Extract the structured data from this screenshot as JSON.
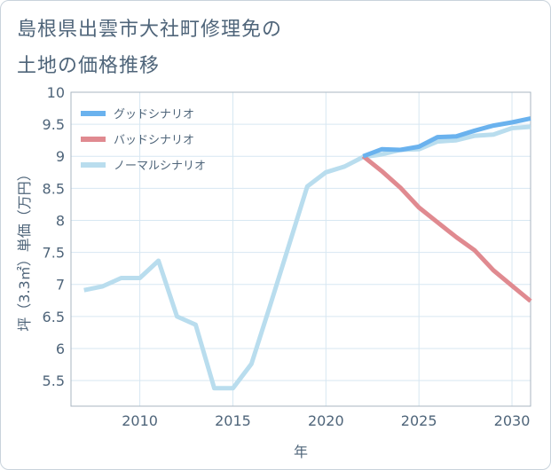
{
  "title_lines": [
    "島根県出雲市大社町修理免の",
    "土地の価格推移"
  ],
  "chart_data": {
    "type": "line",
    "title": "島根県出雲市大社町修理免の土地の価格推移",
    "xlabel": "年",
    "ylabel": "坪（3.3㎡）単価（万円）",
    "xlim": [
      2006.3,
      2031
    ],
    "ylim": [
      5.1,
      10
    ],
    "x_ticks": [
      2010,
      2015,
      2020,
      2025,
      2030
    ],
    "y_ticks": [
      5.5,
      6,
      6.5,
      7,
      7.5,
      8,
      8.5,
      9,
      9.5,
      10
    ],
    "grid": true,
    "legend_position": "top-left",
    "series": [
      {
        "name": "グッドシナリオ",
        "color": "#6ab2ee",
        "x": [
          2022,
          2023,
          2024,
          2025,
          2026,
          2027,
          2028,
          2029,
          2030,
          2031
        ],
        "values": [
          9.0,
          9.11,
          9.1,
          9.15,
          9.3,
          9.31,
          9.4,
          9.48,
          9.53,
          9.59
        ]
      },
      {
        "name": "バッドシナリオ",
        "color": "#e08a90",
        "x": [
          2022,
          2023,
          2024,
          2025,
          2026,
          2027,
          2028,
          2029,
          2030,
          2031
        ],
        "values": [
          9.0,
          8.77,
          8.51,
          8.2,
          7.97,
          7.74,
          7.53,
          7.22,
          6.98,
          6.74
        ]
      },
      {
        "name": "ノーマルシナリオ",
        "color": "#b9ddee",
        "x": [
          2007,
          2008,
          2009,
          2010,
          2011,
          2012,
          2013,
          2014,
          2015,
          2016,
          2017,
          2018,
          2019,
          2020,
          2021,
          2022,
          2023,
          2024,
          2025,
          2026,
          2027,
          2028,
          2029,
          2030,
          2031
        ],
        "values": [
          6.91,
          6.97,
          7.1,
          7.1,
          7.37,
          6.5,
          6.37,
          5.38,
          5.38,
          5.76,
          6.67,
          7.6,
          8.53,
          8.75,
          8.84,
          8.99,
          9.03,
          9.1,
          9.11,
          9.23,
          9.25,
          9.32,
          9.34,
          9.44,
          9.46
        ]
      }
    ]
  }
}
